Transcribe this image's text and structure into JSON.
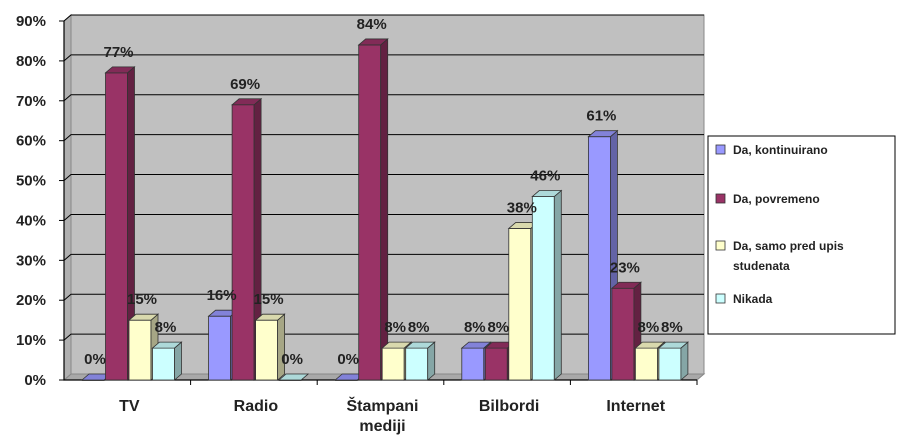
{
  "chart_data": {
    "type": "bar",
    "categories": [
      "TV",
      "Radio",
      "Štampani\nmediji",
      "Bilbordi",
      "Internet"
    ],
    "series": [
      {
        "name": "Da, kontinuirano",
        "values": [
          0,
          16,
          0,
          8,
          61
        ],
        "labels": [
          "0%",
          "16%",
          "0%",
          "8%",
          "61%"
        ]
      },
      {
        "name": "Da, povremeno",
        "values": [
          77,
          69,
          84,
          8,
          23
        ],
        "labels": [
          "77%",
          "69%",
          "84%",
          "8%",
          "23%"
        ]
      },
      {
        "name": "Da, samo pred upis\nstudenata",
        "values": [
          15,
          15,
          8,
          38,
          8
        ],
        "labels": [
          "15%",
          "15%",
          "8%",
          "38%",
          "8%"
        ]
      },
      {
        "name": "Nikada",
        "values": [
          8,
          0,
          8,
          46,
          8
        ],
        "labels": [
          "8%",
          "0%",
          "8%",
          "46%",
          "8%"
        ]
      }
    ],
    "colors": [
      "#9999ff",
      "#993366",
      "#ffffcc",
      "#ccffff"
    ],
    "ylim": [
      0,
      90
    ],
    "yticks": [
      "0%",
      "10%",
      "20%",
      "30%",
      "40%",
      "50%",
      "60%",
      "70%",
      "80%",
      "90%"
    ],
    "background": "#c0c0c0",
    "grid": true,
    "legend_position": "right"
  }
}
